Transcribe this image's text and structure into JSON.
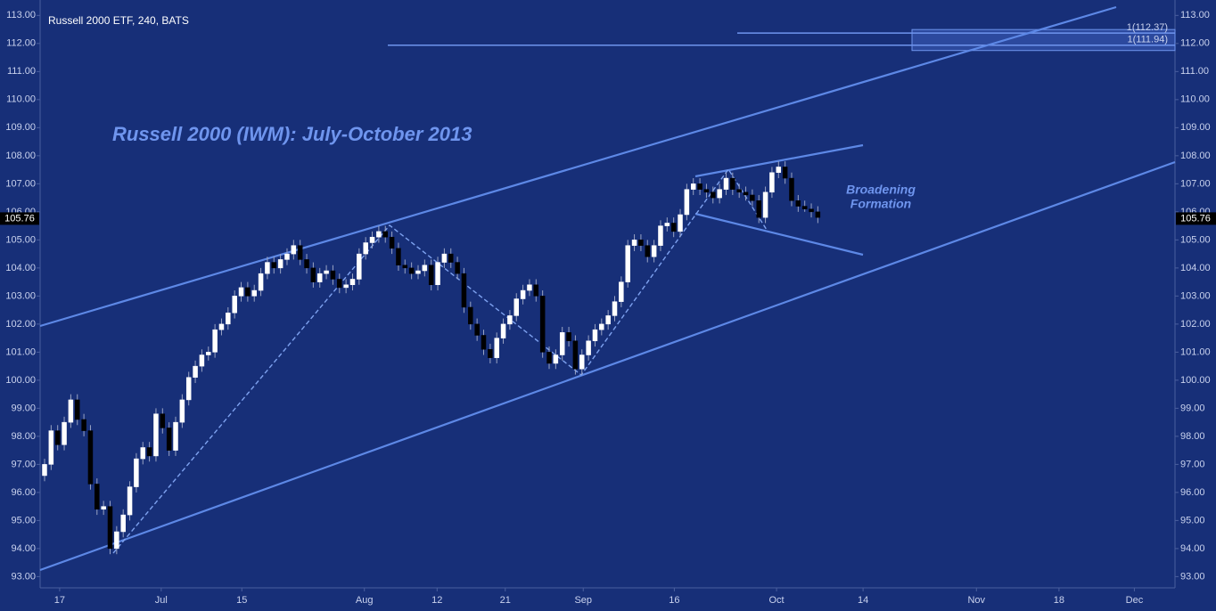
{
  "chart_data": {
    "type": "candlestick",
    "title": "Russell 2000 ETF, 240, BATS",
    "annotations": [
      "Russell 2000 (IWM): July-October 2013"
    ],
    "pattern_label": [
      "Broadening",
      "Formation"
    ],
    "last_price": 105.76,
    "levels": [
      {
        "value": 112.37,
        "label": "1(112.37)"
      },
      {
        "value": 111.94,
        "label": "1(111.94)"
      }
    ],
    "xlim": [
      -0.68,
      172.5
    ],
    "xticks": [
      {
        "value": 2.3,
        "label": "17"
      },
      {
        "value": 17.8,
        "label": "Jul"
      },
      {
        "value": 30.1,
        "label": "15"
      },
      {
        "value": 48.8,
        "label": "Aug"
      },
      {
        "value": 59.9,
        "label": "12"
      },
      {
        "value": 70.3,
        "label": "21"
      },
      {
        "value": 82.2,
        "label": "Sep"
      },
      {
        "value": 96.1,
        "label": "16"
      },
      {
        "value": 111.7,
        "label": "Oct"
      },
      {
        "value": 124.9,
        "label": "14"
      },
      {
        "value": 142.2,
        "label": "Nov"
      },
      {
        "value": 154.8,
        "label": "18"
      },
      {
        "value": 166.3,
        "label": "Dec"
      }
    ],
    "ylim": [
      92.6,
      113.55
    ],
    "yticks": [
      {
        "value": 93,
        "label": "93.00"
      },
      {
        "value": 94,
        "label": "94.00"
      },
      {
        "value": 95,
        "label": "95.00"
      },
      {
        "value": 96,
        "label": "96.00"
      },
      {
        "value": 97,
        "label": "97.00"
      },
      {
        "value": 98,
        "label": "98.00"
      },
      {
        "value": 99,
        "label": "99.00"
      },
      {
        "value": 100,
        "label": "100.00"
      },
      {
        "value": 101,
        "label": "101.00"
      },
      {
        "value": 102,
        "label": "102.00"
      },
      {
        "value": 103,
        "label": "103.00"
      },
      {
        "value": 104,
        "label": "104.00"
      },
      {
        "value": 105,
        "label": "105.00"
      },
      {
        "value": 106,
        "label": "106.00"
      },
      {
        "value": 107,
        "label": "107.00"
      },
      {
        "value": 108,
        "label": "108.00"
      },
      {
        "value": 109,
        "label": "109.00"
      },
      {
        "value": 110,
        "label": "110.00"
      },
      {
        "value": 111,
        "label": "111.00"
      },
      {
        "value": 112,
        "label": "112.00"
      },
      {
        "value": 113,
        "label": "113.00"
      }
    ],
    "up_color": "#ffffff",
    "down_color": "#000000",
    "open": [
      96.6,
      97.0,
      98.2,
      97.7,
      98.5,
      99.3,
      98.6,
      98.2,
      96.3,
      95.4,
      95.5,
      94.0,
      94.6,
      95.2,
      96.2,
      97.2,
      97.6,
      97.3,
      98.8,
      98.3,
      97.5,
      98.5,
      99.3,
      100.1,
      100.5,
      100.9,
      101.0,
      101.8,
      102.0,
      102.4,
      103.0,
      103.3,
      103.0,
      103.2,
      103.8,
      104.2,
      104.0,
      104.3,
      104.5,
      104.8,
      104.3,
      104.0,
      103.5,
      103.8,
      103.9,
      103.6,
      103.3,
      103.4,
      103.6,
      104.5,
      104.9,
      105.1,
      105.3,
      105.1,
      104.7,
      104.1,
      104.0,
      103.8,
      103.9,
      104.1,
      103.4,
      104.2,
      104.5,
      104.2,
      103.8,
      102.6,
      102.0,
      101.6,
      101.1,
      100.8,
      101.5,
      102.0,
      102.3,
      102.9,
      103.2,
      103.4,
      103.0,
      101.0,
      100.6,
      100.9,
      101.7,
      101.4,
      100.4,
      100.9,
      101.4,
      101.8,
      102.0,
      102.3,
      102.8,
      103.5,
      104.8,
      105.0,
      104.8,
      104.4,
      104.8,
      105.5,
      105.6,
      105.3,
      105.9,
      106.8,
      107.0,
      106.8,
      106.7,
      106.5,
      106.8,
      107.2,
      106.8,
      106.7,
      106.6,
      106.4,
      105.8,
      106.7,
      107.4,
      107.6,
      107.2,
      106.4,
      106.2,
      106.1,
      106.0
    ],
    "high": [
      97.2,
      98.4,
      98.4,
      98.7,
      99.5,
      99.5,
      98.8,
      98.4,
      96.5,
      95.7,
      95.7,
      94.8,
      95.4,
      96.4,
      97.4,
      97.8,
      97.8,
      99.0,
      99.0,
      98.5,
      98.7,
      99.5,
      100.3,
      100.7,
      101.1,
      101.2,
      102.0,
      102.2,
      102.6,
      103.2,
      103.5,
      103.5,
      103.4,
      104.0,
      104.4,
      104.4,
      104.5,
      104.7,
      105.0,
      105.0,
      104.5,
      104.2,
      104.0,
      104.1,
      104.1,
      103.8,
      103.6,
      103.8,
      104.7,
      105.1,
      105.3,
      105.5,
      105.5,
      105.3,
      104.9,
      104.3,
      104.2,
      104.1,
      104.3,
      104.3,
      104.4,
      104.7,
      104.7,
      104.4,
      104.0,
      102.8,
      102.2,
      101.8,
      101.3,
      101.7,
      102.2,
      102.5,
      103.1,
      103.4,
      103.6,
      103.6,
      103.2,
      101.2,
      101.1,
      101.9,
      101.9,
      101.6,
      101.1,
      101.6,
      102.0,
      102.2,
      102.5,
      103.0,
      103.7,
      105.0,
      105.2,
      105.2,
      105.0,
      105.0,
      105.7,
      105.8,
      105.8,
      106.1,
      107.0,
      107.2,
      107.2,
      107.0,
      106.9,
      107.0,
      107.4,
      107.4,
      107.0,
      106.9,
      106.8,
      106.6,
      106.9,
      107.6,
      107.8,
      107.8,
      107.4,
      106.6,
      106.4,
      106.3,
      106.2
    ],
    "low": [
      96.4,
      96.8,
      97.5,
      97.5,
      98.3,
      98.4,
      98.0,
      96.1,
      95.2,
      95.2,
      93.8,
      93.8,
      94.4,
      95.0,
      96.0,
      97.0,
      97.1,
      97.1,
      98.1,
      97.3,
      97.3,
      98.3,
      99.1,
      99.9,
      100.3,
      100.7,
      100.8,
      101.6,
      101.8,
      102.2,
      102.8,
      102.8,
      102.8,
      103.0,
      103.6,
      103.8,
      103.8,
      104.1,
      104.3,
      104.1,
      103.8,
      103.3,
      103.3,
      103.6,
      103.4,
      103.1,
      103.1,
      103.2,
      103.4,
      104.3,
      104.7,
      104.9,
      104.9,
      104.5,
      103.9,
      103.8,
      103.6,
      103.6,
      103.7,
      103.2,
      103.2,
      104.0,
      104.0,
      103.6,
      102.4,
      101.8,
      101.4,
      100.9,
      100.6,
      100.6,
      101.3,
      101.8,
      102.1,
      102.7,
      103.0,
      102.8,
      100.8,
      100.4,
      100.4,
      100.7,
      101.2,
      100.2,
      100.2,
      100.7,
      101.2,
      101.6,
      101.8,
      102.1,
      102.6,
      103.3,
      104.6,
      104.6,
      104.2,
      104.2,
      104.6,
      105.3,
      105.1,
      105.1,
      105.7,
      106.6,
      106.6,
      106.5,
      106.3,
      106.3,
      106.6,
      106.6,
      106.5,
      106.4,
      106.2,
      105.6,
      105.6,
      106.5,
      107.2,
      107.0,
      106.2,
      106.0,
      106.0,
      105.8,
      105.6
    ],
    "close": [
      97.0,
      98.2,
      97.7,
      98.5,
      99.3,
      98.6,
      98.2,
      96.3,
      95.4,
      95.5,
      94.0,
      94.6,
      95.2,
      96.2,
      97.2,
      97.6,
      97.3,
      98.8,
      98.3,
      97.5,
      98.5,
      99.3,
      100.1,
      100.5,
      100.9,
      101.0,
      101.8,
      102.0,
      102.4,
      103.0,
      103.3,
      103.0,
      103.2,
      103.8,
      104.2,
      104.0,
      104.3,
      104.5,
      104.8,
      104.3,
      104.0,
      103.5,
      103.8,
      103.9,
      103.6,
      103.3,
      103.4,
      103.6,
      104.5,
      104.9,
      105.1,
      105.3,
      105.1,
      104.7,
      104.1,
      104.0,
      103.8,
      103.9,
      104.1,
      103.4,
      104.2,
      104.5,
      104.2,
      103.8,
      102.6,
      102.0,
      101.6,
      101.1,
      100.8,
      101.5,
      102.0,
      102.3,
      102.9,
      103.2,
      103.4,
      103.0,
      101.0,
      100.6,
      100.9,
      101.7,
      101.4,
      100.4,
      100.9,
      101.4,
      101.8,
      102.0,
      102.3,
      102.8,
      103.5,
      104.8,
      105.0,
      104.8,
      104.4,
      104.8,
      105.5,
      105.6,
      105.3,
      105.9,
      106.8,
      107.0,
      106.8,
      106.7,
      106.5,
      106.8,
      107.2,
      106.8,
      106.7,
      106.6,
      106.4,
      105.8,
      106.7,
      107.4,
      107.6,
      107.2,
      106.4,
      106.2,
      106.1,
      106.0,
      105.8
    ]
  }
}
